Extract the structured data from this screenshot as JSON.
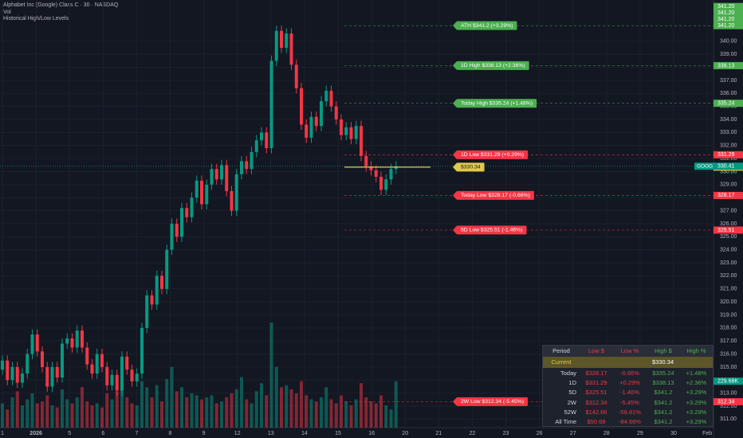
{
  "chart_data": {
    "type": "candlestick",
    "title": "Alphabet Inc (Google) Class C · 30 · NASDAQ",
    "subtitles": [
      "Vol",
      "Historical High/Low Levels"
    ],
    "up_color": "#089981",
    "down_color": "#f23645",
    "grid": true,
    "ylim": [
      310.35,
      342.8
    ],
    "yticks": [
      {
        "value": 311,
        "label": "311.00"
      },
      {
        "value": 312,
        "label": "312.00"
      },
      {
        "value": 313,
        "label": "313.00"
      },
      {
        "value": 314,
        "label": "314.00"
      },
      {
        "value": 315,
        "label": "315.00"
      },
      {
        "value": 316,
        "label": "316.00"
      },
      {
        "value": 317,
        "label": "317.00"
      },
      {
        "value": 318,
        "label": "318.00"
      },
      {
        "value": 319,
        "label": "319.00"
      },
      {
        "value": 320,
        "label": "320.00"
      },
      {
        "value": 321,
        "label": "321.00"
      },
      {
        "value": 322,
        "label": "322.00"
      },
      {
        "value": 323,
        "label": "323.00"
      },
      {
        "value": 324,
        "label": "324.00"
      },
      {
        "value": 325,
        "label": "325.00"
      },
      {
        "value": 326,
        "label": "326.00"
      },
      {
        "value": 327,
        "label": "327.00"
      },
      {
        "value": 328,
        "label": "328.00"
      },
      {
        "value": 329,
        "label": "329.00"
      },
      {
        "value": 330,
        "label": "330.00"
      },
      {
        "value": 331,
        "label": "331.00"
      },
      {
        "value": 332,
        "label": "332.00"
      },
      {
        "value": 333,
        "label": "333.00"
      },
      {
        "value": 334,
        "label": "334.00"
      },
      {
        "value": 335,
        "label": "335.00"
      },
      {
        "value": 336,
        "label": "336.00"
      },
      {
        "value": 337,
        "label": "337.00"
      },
      {
        "value": 338,
        "label": "338.00"
      },
      {
        "value": 339,
        "label": "339.00"
      },
      {
        "value": 340,
        "label": "340.00"
      }
    ],
    "x_labels": [
      "1",
      "2026",
      "5",
      "6",
      "7",
      "8",
      "9",
      "12",
      "13",
      "14",
      "15",
      "16",
      "20",
      "21",
      "22",
      "23",
      "26",
      "27",
      "28",
      "29",
      "30",
      "Feb"
    ],
    "open": [
      314.8,
      315.5,
      314,
      315,
      313.8,
      314.5,
      316,
      317.5,
      316.2,
      315,
      313.5,
      315,
      314.2,
      316.8,
      317.2,
      316.5,
      317.8,
      316.5,
      315.2,
      314.5,
      316,
      315,
      313.6,
      314.4,
      313.2,
      315.8,
      314.8,
      313.9,
      314.5,
      318,
      320.5,
      319.8,
      322,
      321,
      324,
      326,
      325,
      327.2,
      326.5,
      328,
      329.3,
      327.5,
      329,
      330.2,
      329.4,
      330.5,
      328.5,
      327,
      329.8,
      330.8,
      330.2,
      331.5,
      332.4,
      333,
      331.8,
      338.5,
      340.8,
      339.5,
      340.6,
      338.2,
      336.4,
      333.6,
      332.6,
      334.2,
      333.5,
      335.4,
      336.2,
      335,
      334,
      332.8,
      333.4,
      332.5,
      333.5,
      331.2,
      330.4,
      330.1,
      329.6,
      328.6,
      329.4,
      330.2
    ],
    "high": [
      315.9,
      315.9,
      315.4,
      315.4,
      314.9,
      316.4,
      317.9,
      317.9,
      316.6,
      315.4,
      315.4,
      315.4,
      317.2,
      317.6,
      317.6,
      318.2,
      318.2,
      316.9,
      315.6,
      316.4,
      316.4,
      315.4,
      314.8,
      314.8,
      316.2,
      316.2,
      315.2,
      314.9,
      318.4,
      320.9,
      320.9,
      322.4,
      322.4,
      324.4,
      326.4,
      326.4,
      327.6,
      327.6,
      328.4,
      329.7,
      329.7,
      329.4,
      330.6,
      330.6,
      330.9,
      330.9,
      328.9,
      330.2,
      331.2,
      331.2,
      331.9,
      332.8,
      333.4,
      333.4,
      338.9,
      341.2,
      341.2,
      341,
      341,
      338.6,
      336.8,
      334,
      334.6,
      334.6,
      335.8,
      336.6,
      336.6,
      335.4,
      334.4,
      333.8,
      333.8,
      333.9,
      333.9,
      331.6,
      330.8,
      330.5,
      330,
      329.8,
      330.6,
      330.8
    ],
    "low": [
      314.4,
      313.6,
      313.6,
      313.4,
      313.4,
      314.1,
      315.6,
      315.8,
      314.6,
      313.1,
      313.1,
      313.8,
      313.8,
      316.4,
      316.1,
      316.1,
      316.1,
      314.8,
      314.1,
      314.1,
      314.6,
      313.2,
      313.2,
      312.8,
      312.8,
      314.4,
      313.5,
      313.5,
      314.1,
      317.6,
      319.4,
      319.4,
      320.6,
      320.6,
      323.6,
      324.6,
      324.6,
      326.1,
      326.1,
      327.6,
      327.1,
      327.1,
      328.6,
      329,
      329,
      328.1,
      326.6,
      326.6,
      329.4,
      329.8,
      329.8,
      331.1,
      332,
      331.4,
      331.4,
      338.1,
      339.1,
      339.1,
      337.8,
      336,
      333.2,
      332.2,
      332.2,
      333.1,
      333.1,
      335,
      334.6,
      333.6,
      332.4,
      332.4,
      332.1,
      332.1,
      330.8,
      330,
      329.7,
      329.2,
      328.2,
      328.2,
      329,
      329.8
    ],
    "close": [
      315.5,
      314,
      315,
      313.8,
      314.5,
      316,
      317.5,
      316.2,
      315,
      313.5,
      315,
      314.2,
      316.8,
      317.2,
      316.5,
      317.8,
      316.5,
      315.2,
      314.5,
      316,
      315,
      313.6,
      314.4,
      313.2,
      315.8,
      314.8,
      313.9,
      314.5,
      318,
      320.5,
      319.8,
      322,
      321,
      324,
      326,
      325,
      327.2,
      326.5,
      328,
      329.3,
      327.5,
      329,
      330.2,
      329.4,
      330.5,
      328.5,
      327,
      329.8,
      330.8,
      330.2,
      331.5,
      332.4,
      333,
      331.8,
      338.5,
      340.8,
      339.5,
      340.6,
      338.2,
      336.4,
      333.6,
      332.6,
      334.2,
      333.5,
      335.4,
      336.2,
      335,
      334,
      332.8,
      333.4,
      332.5,
      333.5,
      331.2,
      330.4,
      330.1,
      329.6,
      328.6,
      329.4,
      330.2,
      330.41
    ],
    "volume": {
      "values": [
        120,
        90,
        150,
        180,
        110,
        140,
        170,
        120,
        130,
        160,
        110,
        100,
        190,
        140,
        120,
        150,
        200,
        130,
        110,
        120,
        100,
        170,
        140,
        180,
        260,
        150,
        120,
        110,
        230,
        200,
        150,
        210,
        130,
        240,
        300,
        180,
        200,
        150,
        170,
        160,
        140,
        150,
        160,
        120,
        130,
        150,
        170,
        190,
        250,
        140,
        120,
        180,
        220,
        160,
        520,
        300,
        200,
        210,
        190,
        170,
        230,
        160,
        140,
        130,
        150,
        200,
        140,
        120,
        160,
        130,
        110,
        140,
        220,
        150,
        130,
        120,
        160,
        110,
        90,
        229.68
      ],
      "last_label": "229.68K"
    },
    "current": {
      "symbol": "GOOG",
      "value": 330.41
    },
    "high_badges": [
      "341.20",
      "341.20",
      "341.20"
    ],
    "levels": [
      {
        "name": "ATH $341.2 (+3.29%)",
        "value": 341.2,
        "badge": "341.20",
        "color": "#4caf50"
      },
      {
        "name": "1D High $338.13 (+2.36%)",
        "value": 338.13,
        "color": "#4caf50"
      },
      {
        "name": "Today High $335.24 (+1.48%)",
        "value": 335.24,
        "color": "#4caf50"
      },
      {
        "name": "1D Low $331.29 (+0.29%)",
        "value": 331.29,
        "color": "#f23645"
      },
      {
        "name": "$330.34",
        "value": 330.34,
        "color": "#e0c94a",
        "solid": true
      },
      {
        "name": "Today Low $328.17 (-0.66%)",
        "value": 328.17,
        "color": "#f23645"
      },
      {
        "name": "5D Low $325.51 (-1.46%)",
        "value": 325.51,
        "color": "#f23645"
      },
      {
        "name": "2W Low $312.34 (-5.45%)",
        "value": 312.34,
        "color": "#f23645"
      }
    ],
    "table": {
      "header": [
        "Period",
        "Low $",
        "Low %",
        "High $",
        "High %"
      ],
      "current": [
        "Current",
        "$330.34"
      ],
      "rows": [
        [
          "Today",
          "$328.17",
          "-0.66%",
          "$335.24",
          "+1.48%"
        ],
        [
          "1D",
          "$331.29",
          "+0.29%",
          "$338.13",
          "+2.36%"
        ],
        [
          "5D",
          "$325.51",
          "-1.46%",
          "$341.2",
          "+3.29%"
        ],
        [
          "2W",
          "$312.34",
          "-5.45%",
          "$341.2",
          "+3.29%"
        ],
        [
          "52W",
          "$142.66",
          "-56.81%",
          "$341.2",
          "+3.29%"
        ],
        [
          "All Time",
          "$50.68",
          "-84.66%",
          "$341.2",
          "+3.29%"
        ]
      ]
    }
  }
}
